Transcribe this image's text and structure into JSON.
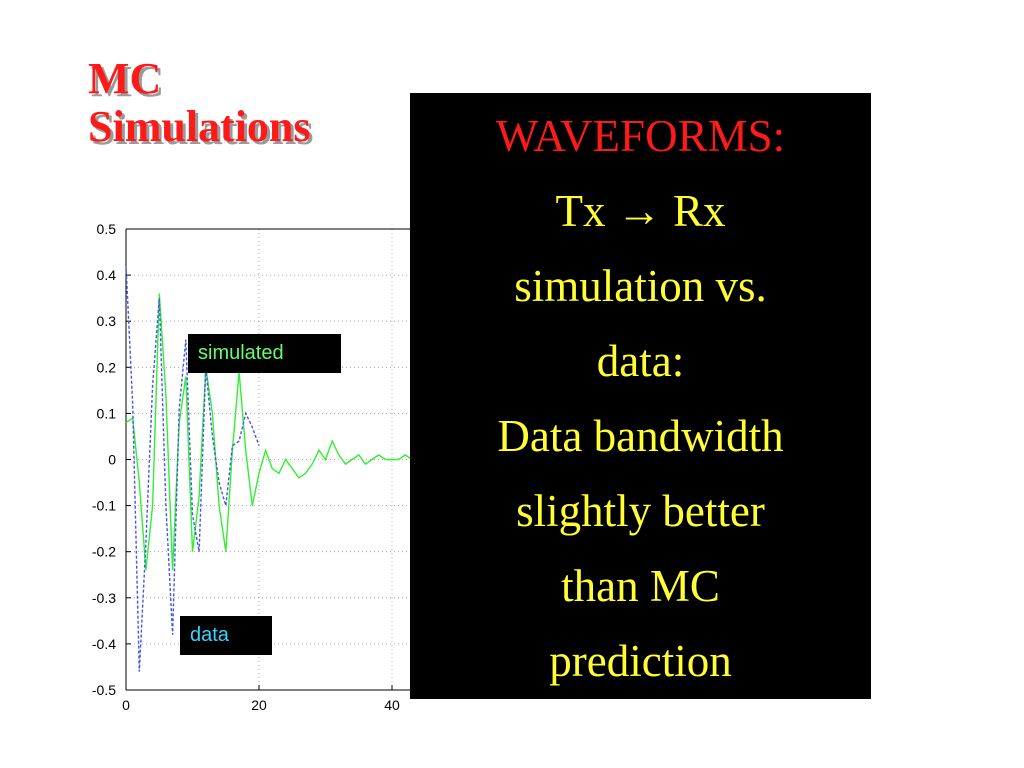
{
  "slide": {
    "title_lines": [
      "MC",
      "Simulations"
    ]
  },
  "panel": {
    "heading": "WAVEFORMS:",
    "lines": [
      "Tx → Rx",
      "simulation vs.",
      "data:",
      "Data bandwidth",
      "slightly better",
      "than MC",
      "prediction"
    ]
  },
  "chart_data": {
    "type": "line",
    "xlim": [
      0,
      60
    ],
    "ylim": [
      -0.5,
      0.5
    ],
    "x_ticks": [
      "0",
      "20",
      "40"
    ],
    "y_ticks": [
      "0.5",
      "0.4",
      "0.3",
      "0.2",
      "0.1",
      "0",
      "-0.1",
      "-0.2",
      "-0.3",
      "-0.4",
      "-0.5"
    ],
    "grid": true,
    "colors": {
      "simulated": "#33ee33",
      "data": "#4455ee"
    },
    "series": [
      {
        "name": "simulated",
        "x": [
          0,
          1,
          2,
          3,
          4,
          5,
          6,
          7,
          8,
          9,
          10,
          11,
          12,
          13,
          14,
          15,
          16,
          17,
          18,
          19,
          20,
          21,
          22,
          23,
          24,
          25,
          26,
          27,
          28,
          29,
          30,
          31,
          32,
          33,
          34,
          35,
          36,
          37,
          38,
          39,
          40,
          41,
          42,
          43,
          44
        ],
        "values": [
          0.08,
          0.09,
          -0.05,
          -0.24,
          -0.1,
          0.36,
          0.14,
          -0.24,
          0.08,
          0.18,
          -0.2,
          -0.08,
          0.2,
          0.1,
          -0.1,
          -0.2,
          0.02,
          0.19,
          0.02,
          -0.1,
          -0.03,
          0.02,
          -0.02,
          -0.03,
          0.0,
          -0.02,
          -0.04,
          -0.03,
          -0.01,
          0.02,
          0.0,
          0.04,
          0.01,
          -0.01,
          0.0,
          0.01,
          -0.01,
          0.0,
          0.01,
          0.0,
          0.0,
          0.0,
          0.01,
          0.0,
          0.0
        ]
      },
      {
        "name": "data",
        "x": [
          0,
          1,
          2,
          3,
          4,
          5,
          6,
          7,
          8,
          9,
          10,
          11,
          12,
          13,
          14,
          15,
          16,
          17,
          18,
          19,
          20
        ],
        "values": [
          0.42,
          0.12,
          -0.46,
          -0.18,
          0.16,
          0.35,
          -0.1,
          -0.38,
          0.11,
          0.26,
          -0.12,
          -0.2,
          0.2,
          0.05,
          -0.05,
          -0.1,
          0.03,
          0.04,
          0.1,
          0.07,
          0.03
        ]
      }
    ]
  }
}
